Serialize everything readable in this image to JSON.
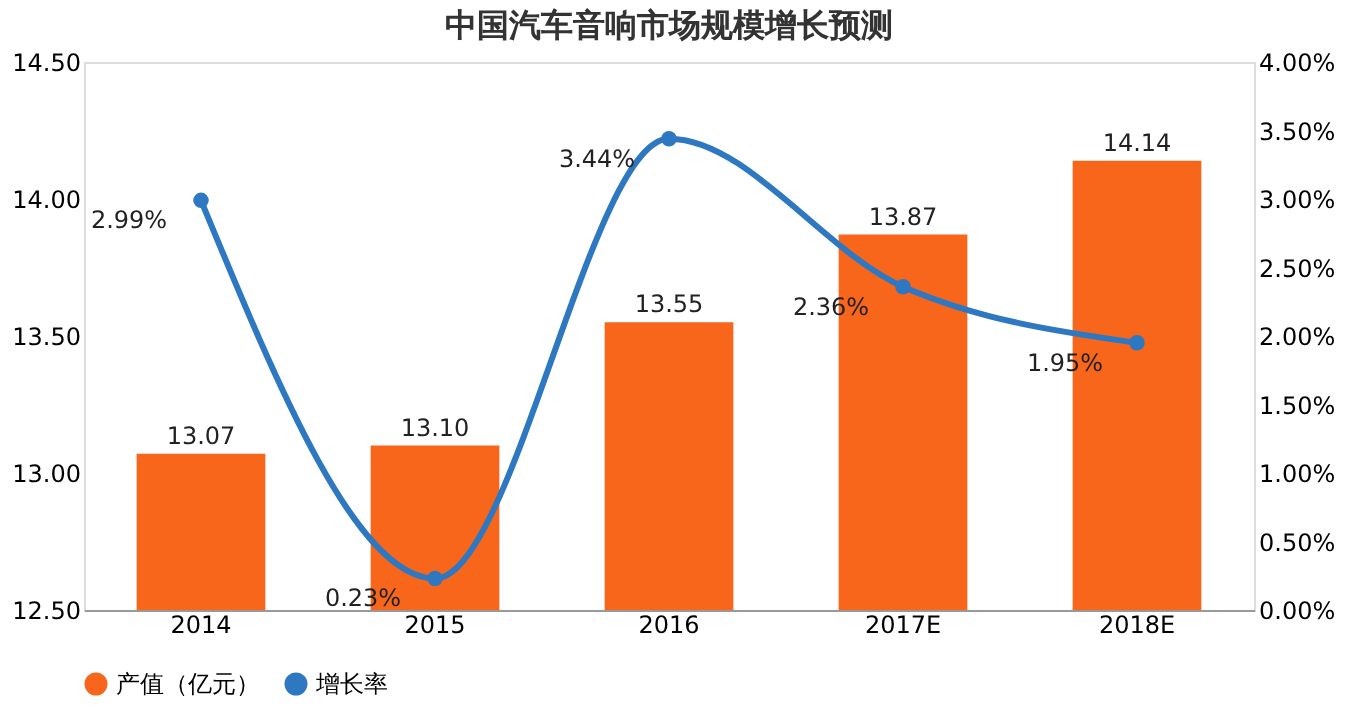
{
  "chart_data": {
    "type": "bar",
    "title": "中国汽车音响市场规模增长预测",
    "categories": [
      "2014",
      "2015",
      "2016",
      "2017E",
      "2018E"
    ],
    "series": [
      {
        "name": "产值（亿元）",
        "color": "#f8661c",
        "values": [
          13.07,
          13.1,
          13.55,
          13.87,
          14.14
        ],
        "value_labels": [
          "13.07",
          "13.10",
          "13.55",
          "13.87",
          "14.14"
        ]
      },
      {
        "name": "增长率",
        "type": "line",
        "axis": "y2",
        "color": "#2e78c2",
        "marker": "circle",
        "values": [
          2.99,
          0.23,
          3.44,
          2.36,
          1.95
        ],
        "value_labels": [
          "2.99%",
          "0.23%",
          "3.44%",
          "2.36%",
          "1.95%"
        ]
      }
    ],
    "ylim": [
      12.5,
      14.5
    ],
    "yticks": [
      {
        "value": 12.5,
        "label": "12.50"
      },
      {
        "value": 13.0,
        "label": "13.00"
      },
      {
        "value": 13.5,
        "label": "13.50"
      },
      {
        "value": 14.0,
        "label": "14.00"
      },
      {
        "value": 14.5,
        "label": "14.50"
      }
    ],
    "y2lim": [
      0,
      4
    ],
    "y2ticks": [
      {
        "value": 0,
        "label": "0.00%"
      },
      {
        "value": 0.5,
        "label": "0.50%"
      },
      {
        "value": 1,
        "label": "1.00%"
      },
      {
        "value": 1.5,
        "label": "1.50%"
      },
      {
        "value": 2,
        "label": "2.00%"
      },
      {
        "value": 2.5,
        "label": "2.50%"
      },
      {
        "value": 3,
        "label": "3.00%"
      },
      {
        "value": 3.5,
        "label": "3.50%"
      },
      {
        "value": 4,
        "label": "4.00%"
      }
    ],
    "grid": false,
    "legend": "bottom"
  }
}
